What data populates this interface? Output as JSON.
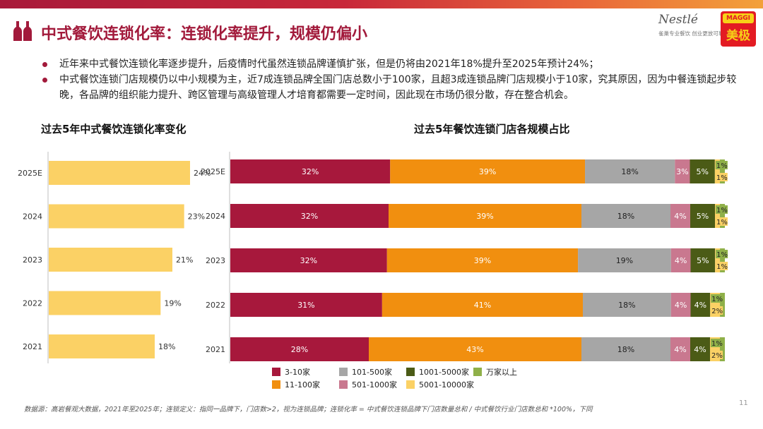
{
  "header": {
    "title": "中式餐饮连锁化率：连锁化率提升，规模仍偏小",
    "brand_primary": "#a21a3b",
    "logo_nestle_text": "Nestlé",
    "logo_nestle_sub": "雀巢专业餐饮 创业更放可靠",
    "logo_maggi_top": "MAGGI",
    "logo_maggi_text": "美极"
  },
  "bullets": [
    "近年来中式餐饮连锁化率逐步提升，后疫情时代虽然连锁品牌谨慎扩张，但是仍将由2021年18%提升至2025年预计24%；",
    "中式餐饮连锁门店规模仍以中小规模为主，近7成连锁品牌全国门店总数小于100家，且超3成连锁品牌门店规模小于10家，究其原因，因为中餐连锁起步较晚，各品牌的组织能力提升、跨区管理与高级管理人才培育都需要一定时间，因此现在市场仍很分散，存在整合机会。"
  ],
  "chart_data": [
    {
      "type": "bar",
      "orientation": "horizontal",
      "title": "过去5年中式餐饮连锁化率变化",
      "categories": [
        "2025E",
        "2024",
        "2023",
        "2022",
        "2021"
      ],
      "values": [
        24,
        23,
        21,
        19,
        18
      ],
      "value_labels": [
        "24%",
        "23%",
        "21%",
        "19%",
        "18%"
      ],
      "unit": "%",
      "color": "#fbd165",
      "xlim": [
        0,
        30
      ]
    },
    {
      "type": "bar",
      "orientation": "horizontal",
      "stacked": true,
      "title": "过去5年餐饮连锁门店各规模占比",
      "categories": [
        "2025E",
        "2024",
        "2023",
        "2022",
        "2021"
      ],
      "unit": "%",
      "series": [
        {
          "name": "3-10家",
          "color": "#a7183c",
          "values": [
            32,
            32,
            32,
            31,
            28
          ]
        },
        {
          "name": "11-100家",
          "color": "#f18f0f",
          "values": [
            39,
            39,
            39,
            41,
            43
          ]
        },
        {
          "name": "101-500家",
          "color": "#a6a6a6",
          "values": [
            18,
            18,
            19,
            18,
            18
          ]
        },
        {
          "name": "501-1000家",
          "color": "#c9788f",
          "values": [
            3,
            4,
            4,
            4,
            4
          ]
        },
        {
          "name": "1001-5000家",
          "color": "#4b5b16",
          "values": [
            5,
            5,
            5,
            4,
            4
          ]
        },
        {
          "name": "5001-10000家",
          "color": "#fbd165",
          "values": [
            1,
            1,
            1,
            2,
            2
          ]
        },
        {
          "name": "万家以上",
          "color": "#8fb049",
          "values": [
            1,
            1,
            1,
            1,
            1
          ]
        }
      ],
      "legend_rows": [
        [
          "3-10家",
          "101-500家",
          "1001-5000家",
          "万家以上"
        ],
        [
          "11-100家",
          "501-1000家",
          "5001-10000家"
        ]
      ]
    }
  ],
  "footer": {
    "source": "数据源：高岩餐观大数据，2021年至2025年；连锁定义：指同一品牌下，门店数>2，视为连锁品牌；连锁化率 = 中式餐饮连锁品牌下门店数量总和 / 中式餐饮行业门店数总和 *100%，下同",
    "page_number": "11"
  }
}
